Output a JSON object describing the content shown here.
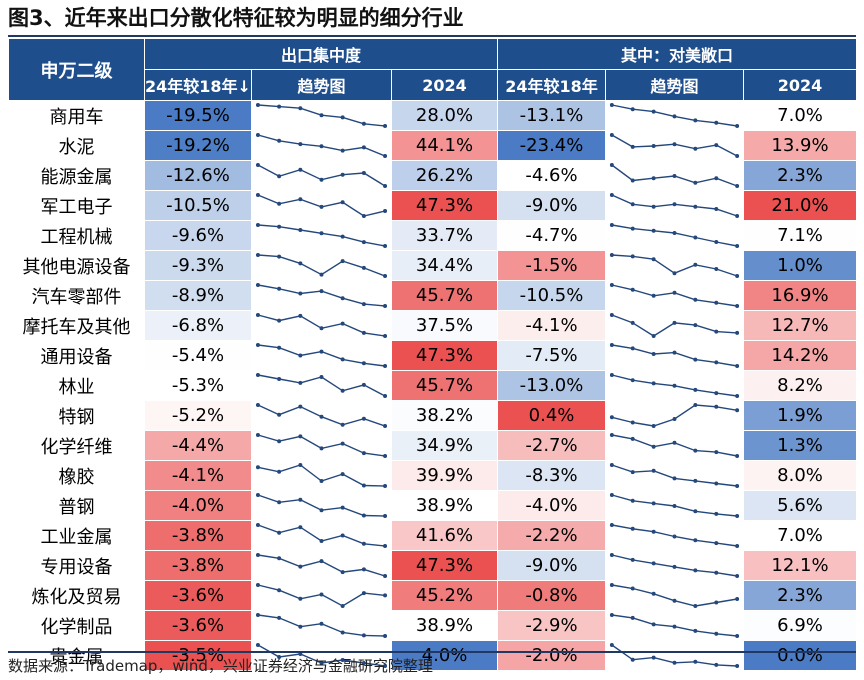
{
  "title": "图3、近年来出口分散化特征较为明显的细分行业",
  "source": "数据来源：Trademap，wind，兴业证券经济与金融研究院整理",
  "colors": {
    "header_bg": "#1f4e8c",
    "line": "#1f3864",
    "neg": "#4a7bc4",
    "pos": "#eb5151",
    "spark": "#24477c"
  },
  "chart_data": {
    "type": "table",
    "title": "近年来出口分散化特征较为明显的细分行业",
    "header": {
      "row_label": "申万二级",
      "group1": "出口集中度",
      "group2": "其中：对美敞口",
      "col_change": "24年较18年↓",
      "col_change2": "24年较18年",
      "col_trend": "趋势图",
      "col_2024": "2024"
    },
    "rows": [
      {
        "name": "商用车",
        "conc_chg": "-19.5%",
        "conc_2024": "28.0%",
        "us_chg": "-13.1%",
        "us_2024": "7.0%",
        "conc_trend": [
          47.5,
          46.0,
          44.5,
          38.0,
          36.0,
          30.0,
          28.0
        ],
        "us_trend": [
          20.1,
          17.5,
          16.0,
          13.0,
          10.5,
          9.0,
          7.0
        ]
      },
      {
        "name": "水泥",
        "conc_chg": "-19.2%",
        "conc_2024": "44.1%",
        "us_chg": "-23.4%",
        "us_2024": "13.9%",
        "conc_trend": [
          63.3,
          58.0,
          55.0,
          53.0,
          49.0,
          52.0,
          44.1
        ],
        "us_trend": [
          37.3,
          24.0,
          25.0,
          27.0,
          22.0,
          26.0,
          13.9
        ]
      },
      {
        "name": "能源金属",
        "conc_chg": "-12.6%",
        "conc_2024": "26.2%",
        "us_chg": "-4.6%",
        "us_2024": "2.3%",
        "conc_trend": [
          38.8,
          32.0,
          36.0,
          30.0,
          33.0,
          34.0,
          26.2
        ],
        "us_trend": [
          6.9,
          3.5,
          4.0,
          4.5,
          3.0,
          4.0,
          2.3
        ]
      },
      {
        "name": "军工电子",
        "conc_chg": "-10.5%",
        "conc_2024": "47.3%",
        "us_chg": "-9.0%",
        "us_2024": "21.0%",
        "conc_trend": [
          57.8,
          52.0,
          55.0,
          50.0,
          53.0,
          44.0,
          47.3
        ],
        "us_trend": [
          30.0,
          26.0,
          25.0,
          26.0,
          25.0,
          24.0,
          21.0
        ]
      },
      {
        "name": "工程机械",
        "conc_chg": "-9.6%",
        "conc_2024": "33.7%",
        "us_chg": "-4.7%",
        "us_2024": "7.1%",
        "conc_trend": [
          43.3,
          42.5,
          41.0,
          39.5,
          38.0,
          35.5,
          33.7
        ],
        "us_trend": [
          11.8,
          11.0,
          10.5,
          10.0,
          9.0,
          8.0,
          7.1
        ]
      },
      {
        "name": "其他电源设备",
        "conc_chg": "-9.3%",
        "conc_2024": "34.4%",
        "us_chg": "-1.5%",
        "us_2024": "1.0%",
        "conc_trend": [
          43.7,
          43.0,
          40.0,
          35.0,
          41.0,
          38.0,
          34.4
        ],
        "us_trend": [
          2.5,
          2.4,
          2.2,
          1.2,
          1.8,
          1.5,
          1.0
        ]
      },
      {
        "name": "汽车零部件",
        "conc_chg": "-8.9%",
        "conc_2024": "45.7%",
        "us_chg": "-10.5%",
        "us_2024": "16.9%",
        "conc_trend": [
          54.6,
          53.0,
          51.0,
          52.0,
          49.0,
          46.5,
          45.7
        ],
        "us_trend": [
          27.4,
          25.0,
          22.0,
          23.5,
          20.0,
          18.5,
          16.9
        ]
      },
      {
        "name": "摩托车及其他",
        "conc_chg": "-6.8%",
        "conc_2024": "37.5%",
        "us_chg": "-4.1%",
        "us_2024": "12.7%",
        "conc_trend": [
          44.3,
          42.5,
          44.0,
          40.0,
          41.5,
          38.5,
          37.5
        ],
        "us_trend": [
          16.8,
          15.0,
          12.0,
          15.0,
          14.5,
          13.0,
          12.7
        ]
      },
      {
        "name": "通用设备",
        "conc_chg": "-5.4%",
        "conc_2024": "47.3%",
        "us_chg": "-7.5%",
        "us_2024": "14.2%",
        "conc_trend": [
          52.7,
          52.0,
          50.0,
          51.0,
          49.0,
          48.0,
          47.3
        ],
        "us_trend": [
          21.7,
          20.5,
          18.5,
          19.0,
          16.5,
          15.5,
          14.2
        ]
      },
      {
        "name": "林业",
        "conc_chg": "-5.3%",
        "conc_2024": "45.7%",
        "us_chg": "-13.0%",
        "us_2024": "8.2%",
        "conc_trend": [
          51.0,
          50.0,
          49.0,
          50.5,
          47.0,
          48.5,
          45.7
        ],
        "us_trend": [
          21.2,
          18.0,
          16.0,
          14.5,
          12.0,
          10.0,
          8.2
        ]
      },
      {
        "name": "特钢",
        "conc_chg": "-5.2%",
        "conc_2024": "38.2%",
        "us_chg": "0.4%",
        "us_2024": "1.9%",
        "conc_trend": [
          43.4,
          41.0,
          43.0,
          40.5,
          38.5,
          40.0,
          38.2
        ],
        "us_trend": [
          1.5,
          1.2,
          1.0,
          1.4,
          2.2,
          2.1,
          1.9
        ]
      },
      {
        "name": "化学纤维",
        "conc_chg": "-4.4%",
        "conc_2024": "34.9%",
        "us_chg": "-2.7%",
        "us_2024": "1.3%",
        "conc_trend": [
          39.3,
          38.0,
          39.0,
          36.5,
          37.5,
          35.5,
          34.9
        ],
        "us_trend": [
          4.0,
          3.5,
          2.5,
          3.0,
          2.0,
          1.8,
          1.3
        ]
      },
      {
        "name": "橡胶",
        "conc_chg": "-4.1%",
        "conc_2024": "39.9%",
        "us_chg": "-8.3%",
        "us_2024": "8.0%",
        "conc_trend": [
          44.0,
          43.0,
          44.5,
          41.0,
          42.5,
          40.0,
          39.9
        ],
        "us_trend": [
          16.3,
          13.5,
          14.0,
          11.0,
          10.0,
          9.0,
          8.0
        ]
      },
      {
        "name": "普钢",
        "conc_chg": "-4.0%",
        "conc_2024": "38.9%",
        "us_chg": "-4.0%",
        "us_2024": "5.6%",
        "conc_trend": [
          42.9,
          41.5,
          42.0,
          40.0,
          40.5,
          39.0,
          38.9
        ],
        "us_trend": [
          9.6,
          8.5,
          8.0,
          7.5,
          6.5,
          6.0,
          5.6
        ]
      },
      {
        "name": "工业金属",
        "conc_chg": "-3.8%",
        "conc_2024": "41.6%",
        "us_chg": "-2.2%",
        "us_2024": "7.0%",
        "conc_trend": [
          45.4,
          44.0,
          45.0,
          42.5,
          43.5,
          42.0,
          41.6
        ],
        "us_trend": [
          9.2,
          8.8,
          8.5,
          8.0,
          7.6,
          7.3,
          7.0
        ]
      },
      {
        "name": "专用设备",
        "conc_chg": "-3.8%",
        "conc_2024": "47.3%",
        "us_chg": "-9.0%",
        "us_2024": "12.1%",
        "conc_trend": [
          51.1,
          50.5,
          49.0,
          50.0,
          48.0,
          48.5,
          47.3
        ],
        "us_trend": [
          21.1,
          19.0,
          17.5,
          16.0,
          14.5,
          13.5,
          12.1
        ]
      },
      {
        "name": "炼化及贸易",
        "conc_chg": "-3.6%",
        "conc_2024": "45.2%",
        "us_chg": "-0.8%",
        "us_2024": "2.3%",
        "conc_trend": [
          48.8,
          47.0,
          44.0,
          45.5,
          41.5,
          46.0,
          45.2
        ],
        "us_trend": [
          3.1,
          2.9,
          2.6,
          2.2,
          1.9,
          2.1,
          2.3
        ]
      },
      {
        "name": "化学制品",
        "conc_chg": "-3.6%",
        "conc_2024": "38.9%",
        "us_chg": "-2.9%",
        "us_2024": "6.9%",
        "conc_trend": [
          42.5,
          42.0,
          40.5,
          41.0,
          39.5,
          39.0,
          38.9
        ],
        "us_trend": [
          9.8,
          9.4,
          8.5,
          8.2,
          7.6,
          7.2,
          6.9
        ]
      },
      {
        "name": "贵金属",
        "conc_chg": "-3.5%",
        "conc_2024": "4.0%",
        "us_chg": "-2.0%",
        "us_2024": "0.0%",
        "conc_trend": [
          7.5,
          5.5,
          6.0,
          4.5,
          5.0,
          4.5,
          4.0
        ],
        "us_trend": [
          2.0,
          0.6,
          0.8,
          0.3,
          0.4,
          0.1,
          0.0
        ]
      }
    ]
  }
}
